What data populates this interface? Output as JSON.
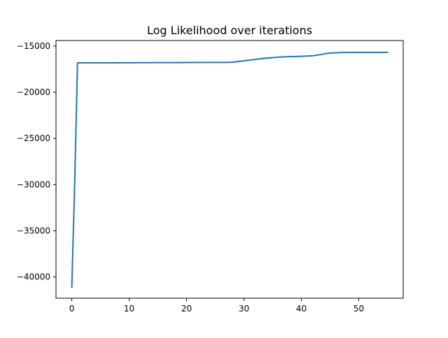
{
  "chart_data": {
    "type": "line",
    "title": "Log Likelihood over iterations",
    "xlabel": "",
    "ylabel": "",
    "xlim": [
      -2.75,
      57.75
    ],
    "ylim": [
      -42300,
      -14400
    ],
    "xticks": [
      0,
      10,
      20,
      30,
      40,
      50
    ],
    "yticks": [
      -40000,
      -35000,
      -30000,
      -25000,
      -20000,
      -15000
    ],
    "x_tick_labels": [
      "0",
      "10",
      "20",
      "30",
      "40",
      "50"
    ],
    "y_tick_labels": [
      "−40000",
      "−35000",
      "−30000",
      "−25000",
      "−20000",
      "−15000"
    ],
    "grid": false,
    "series": [
      {
        "color": "#1f77b4",
        "x": [
          0,
          0.5,
          1,
          5,
          10,
          15,
          20,
          25,
          27,
          28,
          30,
          32,
          34,
          36,
          38,
          40,
          42,
          43,
          44,
          45,
          46,
          48,
          50,
          52,
          55
        ],
        "y": [
          -41100,
          -30000,
          -16820,
          -16815,
          -16810,
          -16795,
          -16785,
          -16775,
          -16770,
          -16740,
          -16600,
          -16440,
          -16300,
          -16200,
          -16150,
          -16110,
          -16050,
          -15960,
          -15840,
          -15760,
          -15720,
          -15690,
          -15685,
          -15685,
          -15685
        ]
      }
    ]
  }
}
